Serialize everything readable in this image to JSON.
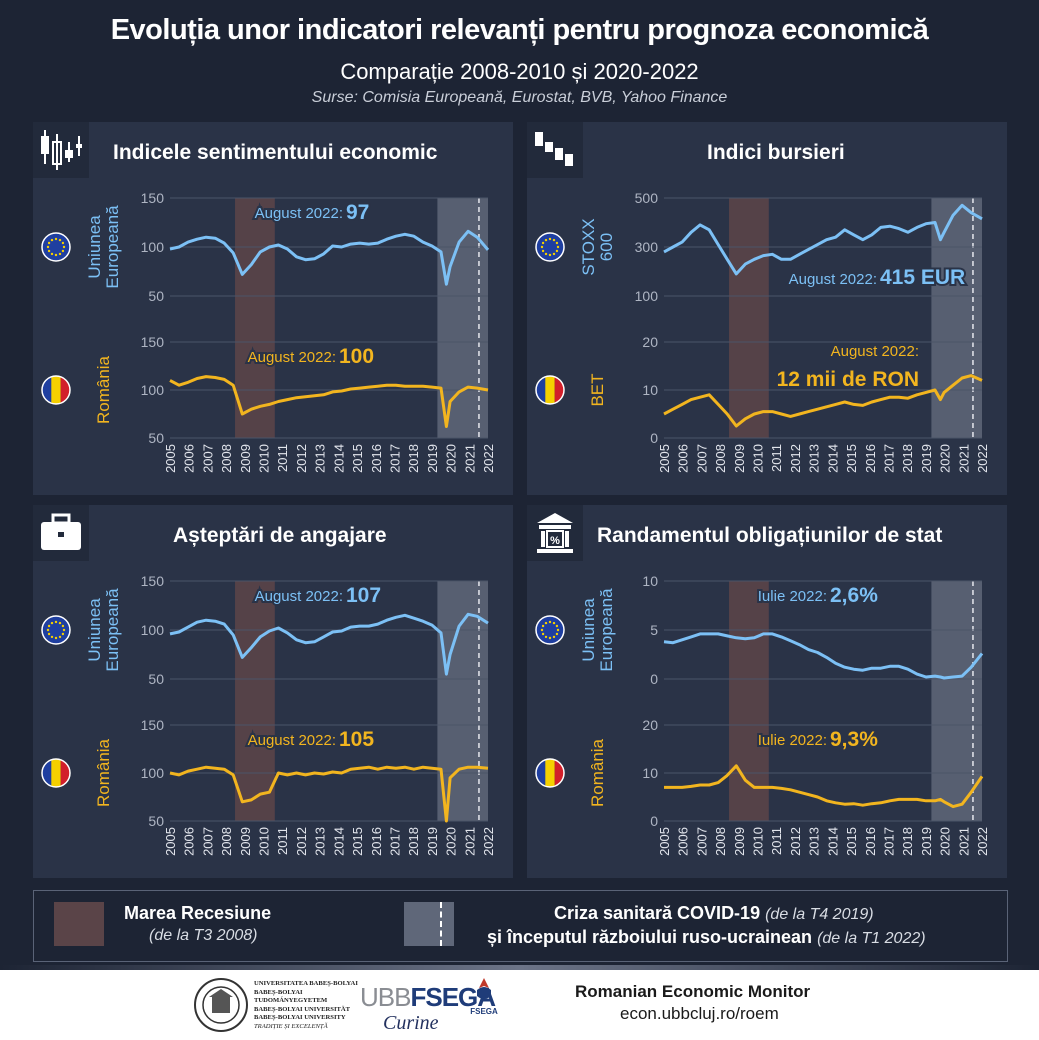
{
  "header": {
    "title": "Evoluția unor indicatori relevanți pentru prognoza economică",
    "subtitle": "Comparație 2008-2010 și 2020-2022",
    "sources": "Surse: Comisia Europeană, Eurostat, BVB, Yahoo Finance"
  },
  "colors": {
    "eu": "#7cc0f5",
    "ro": "#f2b51f",
    "recession": "#5a4448",
    "covid": "#5f6779",
    "panel": "#2a3347"
  },
  "years": [
    "2005",
    "2006",
    "2007",
    "2008",
    "2009",
    "2010",
    "2011",
    "2012",
    "2013",
    "2014",
    "2015",
    "2016",
    "2017",
    "2018",
    "2019",
    "2020",
    "2021",
    "2022"
  ],
  "legend": {
    "recession_label": "Marea Recesiune",
    "recession_note": "(de la T3 2008)",
    "covid_label": "Criza sanitară COVID-19",
    "covid_note1": "(de la T4 2019)",
    "covid_label2": "și începutul războiului ruso-ucrainean",
    "covid_note2": "(de la T1 2022)"
  },
  "footer": {
    "univ_lines": [
      "UNIVERSITATEA BABEȘ-BOLYAI",
      "BABEȘ-BOLYAI TUDOMÁNYEGYETEM",
      "BABEȘ-BOLYAI UNIVERSITÄT",
      "BABEȘ-BOLYAI UNIVERSITY",
      "TRADIȚIE ȘI EXCELENȚĂ"
    ],
    "ubb": "UBB",
    "fsega": "FSEGA",
    "fsega_small": "FSEGA",
    "curine": "Curine",
    "monitor": "Romanian Economic Monitor",
    "url": "econ.ubbcluj.ro/roem"
  },
  "chart_data": [
    {
      "type": "line",
      "title": "Indicele sentimentului economic",
      "x": [
        2005,
        2005.5,
        2006,
        2006.5,
        2007,
        2007.5,
        2008,
        2008.5,
        2009,
        2009.5,
        2010,
        2010.5,
        2011,
        2011.5,
        2012,
        2012.5,
        2013,
        2013.5,
        2014,
        2014.5,
        2015,
        2015.5,
        2016,
        2016.5,
        2017,
        2017.5,
        2018,
        2018.5,
        2019,
        2019.5,
        2020,
        2020.3,
        2020.5,
        2021,
        2021.5,
        2022,
        2022.6
      ],
      "series": [
        {
          "name": "Uniunea Europeană",
          "label": "Uniunea Europeană",
          "ylabels": [
            "150",
            "100",
            "50"
          ],
          "ylim": [
            50,
            150
          ],
          "annotation_prefix": "August 2022:",
          "annotation_value": "97",
          "values": [
            98,
            100,
            105,
            108,
            110,
            109,
            104,
            94,
            72,
            82,
            95,
            100,
            102,
            98,
            90,
            87,
            88,
            93,
            101,
            100,
            103,
            104,
            103,
            104,
            108,
            111,
            113,
            111,
            105,
            101,
            95,
            62,
            80,
            105,
            116,
            110,
            97
          ]
        },
        {
          "name": "România",
          "label": "România",
          "ylabels": [
            "150",
            "100",
            "50"
          ],
          "ylim": [
            50,
            150
          ],
          "annotation_prefix": "August 2022:",
          "annotation_value": "100",
          "values": [
            110,
            105,
            108,
            112,
            114,
            113,
            111,
            105,
            75,
            80,
            83,
            85,
            88,
            90,
            92,
            93,
            94,
            95,
            98,
            99,
            101,
            102,
            103,
            104,
            105,
            105,
            104,
            104,
            104,
            103,
            102,
            62,
            88,
            98,
            103,
            102,
            100
          ]
        }
      ],
      "recession": [
        2008.6,
        2010.8
      ],
      "covid": [
        2019.8,
        2022.6
      ],
      "war_line": 2022.1
    },
    {
      "type": "line",
      "title": "Indici bursieri",
      "x": [
        2005,
        2005.5,
        2006,
        2006.5,
        2007,
        2007.5,
        2008,
        2008.5,
        2009,
        2009.5,
        2010,
        2010.5,
        2011,
        2011.5,
        2012,
        2012.5,
        2013,
        2013.5,
        2014,
        2014.5,
        2015,
        2015.5,
        2016,
        2016.5,
        2017,
        2017.5,
        2018,
        2018.5,
        2019,
        2019.5,
        2020,
        2020.3,
        2020.5,
        2021,
        2021.5,
        2022,
        2022.6
      ],
      "series": [
        {
          "name": "STOXX 600",
          "label": "STOXX 600",
          "ylabels": [
            "500",
            "300",
            "100"
          ],
          "ylim": [
            100,
            500
          ],
          "annotation_prefix": "August 2022:",
          "annotation_value": "415 EUR",
          "values": [
            280,
            300,
            320,
            360,
            390,
            370,
            310,
            250,
            190,
            230,
            250,
            265,
            270,
            250,
            250,
            270,
            290,
            310,
            330,
            340,
            370,
            350,
            330,
            350,
            380,
            385,
            375,
            360,
            380,
            395,
            400,
            330,
            360,
            430,
            470,
            440,
            415
          ]
        },
        {
          "name": "BET",
          "label": "BET",
          "ylabels": [
            "20",
            "10",
            "0"
          ],
          "ylim": [
            0,
            20
          ],
          "annotation_prefix": "August 2022:",
          "annotation_value": "12 mii de RON",
          "values": [
            5,
            6,
            7,
            8,
            8.5,
            9,
            7,
            5,
            2.5,
            4,
            5,
            5.5,
            5.5,
            5,
            4.5,
            5,
            5.5,
            6,
            6.5,
            7,
            7.5,
            7,
            6.8,
            7.5,
            8,
            8.5,
            8.5,
            8.3,
            9,
            9.5,
            10,
            8,
            9.5,
            11,
            12.5,
            13,
            12
          ]
        }
      ],
      "recession": [
        2008.6,
        2010.8
      ],
      "covid": [
        2019.8,
        2022.6
      ],
      "war_line": 2022.1
    },
    {
      "type": "line",
      "title": "Așteptări de angajare",
      "x": [
        2005,
        2005.5,
        2006,
        2006.5,
        2007,
        2007.5,
        2008,
        2008.5,
        2009,
        2009.5,
        2010,
        2010.5,
        2011,
        2011.5,
        2012,
        2012.5,
        2013,
        2013.5,
        2014,
        2014.5,
        2015,
        2015.5,
        2016,
        2016.5,
        2017,
        2017.5,
        2018,
        2018.5,
        2019,
        2019.5,
        2020,
        2020.3,
        2020.5,
        2021,
        2021.5,
        2022,
        2022.6
      ],
      "series": [
        {
          "name": "Uniunea Europeană",
          "label": "Uniunea Europeană",
          "ylabels": [
            "150",
            "100",
            "50"
          ],
          "ylim": [
            50,
            150
          ],
          "annotation_prefix": "August 2022:",
          "annotation_value": "107",
          "values": [
            96,
            98,
            103,
            108,
            110,
            109,
            106,
            95,
            72,
            82,
            93,
            99,
            102,
            97,
            90,
            87,
            88,
            93,
            98,
            99,
            103,
            104,
            104,
            106,
            110,
            113,
            115,
            112,
            109,
            105,
            97,
            55,
            75,
            104,
            116,
            114,
            107
          ]
        },
        {
          "name": "România",
          "label": "România",
          "ylabels": [
            "150",
            "100",
            "50"
          ],
          "ylim": [
            50,
            150
          ],
          "annotation_prefix": "August 2022:",
          "annotation_value": "105",
          "values": [
            100,
            98,
            102,
            104,
            106,
            105,
            104,
            98,
            70,
            72,
            78,
            80,
            100,
            98,
            100,
            98,
            100,
            99,
            101,
            100,
            104,
            105,
            106,
            104,
            106,
            105,
            106,
            104,
            106,
            105,
            104,
            50,
            95,
            104,
            106,
            106,
            105
          ]
        }
      ],
      "recession": [
        2008.6,
        2010.8
      ],
      "covid": [
        2019.8,
        2022.6
      ],
      "war_line": 2022.1
    },
    {
      "type": "line",
      "title": "Randamentul obligațiunilor de stat",
      "x": [
        2005,
        2005.5,
        2006,
        2006.5,
        2007,
        2007.5,
        2008,
        2008.5,
        2009,
        2009.5,
        2010,
        2010.5,
        2011,
        2011.5,
        2012,
        2012.5,
        2013,
        2013.5,
        2014,
        2014.5,
        2015,
        2015.5,
        2016,
        2016.5,
        2017,
        2017.5,
        2018,
        2018.5,
        2019,
        2019.5,
        2020,
        2020.3,
        2020.5,
        2021,
        2021.5,
        2022,
        2022.6
      ],
      "series": [
        {
          "name": "Uniunea Europeană",
          "label": "Uniunea Europeană",
          "ylabels": [
            "10",
            "5",
            "0"
          ],
          "ylim": [
            0,
            10
          ],
          "annotation_prefix": "Iulie 2022:",
          "annotation_value": "2,6%",
          "values": [
            3.8,
            3.7,
            4.0,
            4.3,
            4.6,
            4.6,
            4.6,
            4.4,
            4.2,
            4.1,
            4.2,
            4.6,
            4.6,
            4.3,
            3.9,
            3.5,
            3.0,
            2.7,
            2.2,
            1.6,
            1.2,
            1.0,
            0.9,
            1.1,
            1.1,
            1.3,
            1.3,
            1.0,
            0.5,
            0.2,
            0.3,
            0.2,
            0.1,
            0.2,
            0.3,
            1.2,
            2.6
          ]
        },
        {
          "name": "România",
          "label": "România",
          "ylabels": [
            "20",
            "10",
            "0"
          ],
          "ylim": [
            0,
            20
          ],
          "annotation_prefix": "Iulie 2022:",
          "annotation_value": "9,3%",
          "values": [
            7,
            7,
            7,
            7.2,
            7.5,
            7.5,
            8,
            9.5,
            11.5,
            8.5,
            7,
            7,
            7,
            6.8,
            6.5,
            6,
            5.5,
            5,
            4.2,
            3.8,
            3.5,
            3.6,
            3.3,
            3.6,
            3.8,
            4.2,
            4.5,
            4.5,
            4.5,
            4.2,
            4.2,
            4.5,
            4.0,
            3.0,
            3.5,
            6.0,
            9.3
          ]
        }
      ],
      "recession": [
        2008.6,
        2010.8
      ],
      "covid": [
        2019.8,
        2022.6
      ],
      "war_line": 2022.1
    }
  ]
}
